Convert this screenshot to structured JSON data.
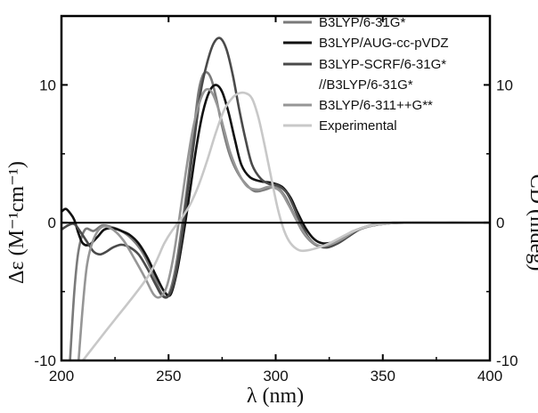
{
  "chart_data": {
    "type": "line",
    "xlabel": "λ (nm)",
    "ylabel_left": "Δε (M⁻¹cm⁻¹)",
    "ylabel_right": "CD (mdeg)",
    "xlim": [
      200,
      400
    ],
    "ylim": [
      -10,
      15
    ],
    "x_ticks": [
      200,
      250,
      300,
      350,
      400
    ],
    "y_ticks_left": [
      -10,
      0,
      10
    ],
    "y_ticks_right": [
      -10,
      0,
      10
    ],
    "zero_line": true,
    "grid": false,
    "legend_position": "top-right",
    "series": [
      {
        "name": "B3LYP/6-31G*",
        "color": "#7a7a7a",
        "points": [
          [
            204,
            -10
          ],
          [
            206,
            -5
          ],
          [
            208,
            -2
          ],
          [
            211,
            -0.5
          ],
          [
            215,
            -0.6
          ],
          [
            219,
            -0.2
          ],
          [
            223,
            -0.3
          ],
          [
            228,
            -0.6
          ],
          [
            233,
            -1.2
          ],
          [
            238,
            -2.2
          ],
          [
            243,
            -3.8
          ],
          [
            247,
            -5.2
          ],
          [
            250,
            -5.2
          ],
          [
            253,
            -3.5
          ],
          [
            256,
            -0.5
          ],
          [
            259,
            3
          ],
          [
            262,
            7
          ],
          [
            264,
            9.5
          ],
          [
            266,
            10.7
          ],
          [
            268,
            10.9
          ],
          [
            270,
            10.4
          ],
          [
            272,
            9.2
          ],
          [
            275,
            7
          ],
          [
            278,
            5.2
          ],
          [
            281,
            4
          ],
          [
            285,
            3
          ],
          [
            290,
            2.3
          ],
          [
            295,
            2.4
          ],
          [
            300,
            2.6
          ],
          [
            304,
            2
          ],
          [
            308,
            0.8
          ],
          [
            312,
            -0.5
          ],
          [
            316,
            -1.3
          ],
          [
            320,
            -1.7
          ],
          [
            325,
            -1.6
          ],
          [
            330,
            -1.2
          ],
          [
            335,
            -0.7
          ],
          [
            340,
            -0.4
          ],
          [
            345,
            -0.2
          ],
          [
            350,
            -0.1
          ],
          [
            360,
            0
          ],
          [
            400,
            0
          ]
        ]
      },
      {
        "name": "B3LYP/AUG-cc-pVDZ",
        "color": "#111111",
        "points": [
          [
            200,
            0.8
          ],
          [
            202,
            1
          ],
          [
            204,
            0.7
          ],
          [
            206,
            0.2
          ],
          [
            208,
            -0.8
          ],
          [
            210,
            -1.5
          ],
          [
            213,
            -1.6
          ],
          [
            217,
            -1
          ],
          [
            220,
            -0.5
          ],
          [
            224,
            -0.4
          ],
          [
            228,
            -0.6
          ],
          [
            232,
            -0.9
          ],
          [
            236,
            -1.5
          ],
          [
            240,
            -2.5
          ],
          [
            244,
            -3.8
          ],
          [
            248,
            -5
          ],
          [
            251,
            -5.2
          ],
          [
            254,
            -3.5
          ],
          [
            257,
            -0.8
          ],
          [
            260,
            2.3
          ],
          [
            263,
            5.5
          ],
          [
            266,
            8
          ],
          [
            269,
            9.5
          ],
          [
            272,
            10
          ],
          [
            275,
            9.5
          ],
          [
            278,
            8
          ],
          [
            281,
            6
          ],
          [
            284,
            4.2
          ],
          [
            288,
            3.3
          ],
          [
            293,
            3
          ],
          [
            298,
            2.9
          ],
          [
            303,
            2.6
          ],
          [
            307,
            1.8
          ],
          [
            310,
            0.8
          ],
          [
            314,
            -0.4
          ],
          [
            318,
            -1.2
          ],
          [
            322,
            -1.5
          ],
          [
            327,
            -1.4
          ],
          [
            332,
            -1
          ],
          [
            337,
            -0.6
          ],
          [
            342,
            -0.3
          ],
          [
            347,
            -0.15
          ],
          [
            355,
            0
          ],
          [
            400,
            0
          ]
        ]
      },
      {
        "name": "B3LYP-SCRF/6-31G* //B3LYP/6-31G*",
        "color": "#4a4a4a",
        "points": [
          [
            200,
            -0.5
          ],
          [
            203,
            -0.2
          ],
          [
            206,
            -0.1
          ],
          [
            209,
            -0.7
          ],
          [
            212,
            -1.4
          ],
          [
            215,
            -2.1
          ],
          [
            218,
            -2.3
          ],
          [
            221,
            -2.1
          ],
          [
            224,
            -1.8
          ],
          [
            228,
            -1.6
          ],
          [
            232,
            -1.8
          ],
          [
            236,
            -2.3
          ],
          [
            240,
            -3.3
          ],
          [
            244,
            -4.5
          ],
          [
            247,
            -5.3
          ],
          [
            250,
            -5.3
          ],
          [
            253,
            -4
          ],
          [
            256,
            -1.2
          ],
          [
            259,
            2.4
          ],
          [
            262,
            6
          ],
          [
            265,
            9.5
          ],
          [
            268,
            11.6
          ],
          [
            271,
            13
          ],
          [
            274,
            13.4
          ],
          [
            277,
            12.6
          ],
          [
            280,
            10.7
          ],
          [
            283,
            8.2
          ],
          [
            286,
            6
          ],
          [
            289,
            4.2
          ],
          [
            293,
            3.2
          ],
          [
            297,
            2.8
          ],
          [
            301,
            2.7
          ],
          [
            305,
            2.2
          ],
          [
            308,
            1.3
          ],
          [
            311,
            0.2
          ],
          [
            315,
            -1
          ],
          [
            319,
            -1.6
          ],
          [
            324,
            -1.8
          ],
          [
            329,
            -1.5
          ],
          [
            334,
            -1
          ],
          [
            339,
            -0.5
          ],
          [
            344,
            -0.25
          ],
          [
            350,
            -0.1
          ],
          [
            360,
            0
          ],
          [
            400,
            0
          ]
        ]
      },
      {
        "name": "B3LYP/6-311++G**",
        "color": "#969696",
        "points": [
          [
            208,
            -10
          ],
          [
            210,
            -6
          ],
          [
            212,
            -3
          ],
          [
            215,
            -1.2
          ],
          [
            219,
            -0.3
          ],
          [
            224,
            -0.5
          ],
          [
            229,
            -1.3
          ],
          [
            234,
            -2.6
          ],
          [
            239,
            -4
          ],
          [
            243,
            -5.2
          ],
          [
            246,
            -5.4
          ],
          [
            249,
            -4.7
          ],
          [
            252,
            -2.7
          ],
          [
            255,
            0.3
          ],
          [
            258,
            3.6
          ],
          [
            261,
            6.5
          ],
          [
            264,
            8.5
          ],
          [
            267,
            9.6
          ],
          [
            270,
            9.5
          ],
          [
            273,
            8.4
          ],
          [
            276,
            6.7
          ],
          [
            279,
            5
          ],
          [
            283,
            3.5
          ],
          [
            287,
            2.6
          ],
          [
            292,
            2.4
          ],
          [
            297,
            2.6
          ],
          [
            302,
            2.3
          ],
          [
            306,
            1.3
          ],
          [
            310,
            0.1
          ],
          [
            314,
            -0.9
          ],
          [
            318,
            -1.5
          ],
          [
            322,
            -1.7
          ],
          [
            327,
            -1.5
          ],
          [
            332,
            -1.1
          ],
          [
            337,
            -0.6
          ],
          [
            342,
            -0.3
          ],
          [
            347,
            -0.1
          ],
          [
            355,
            0
          ],
          [
            400,
            0
          ]
        ]
      },
      {
        "name": "Experimental",
        "color": "#c8c8c8",
        "points": [
          [
            200,
            -12
          ],
          [
            220,
            -8
          ],
          [
            240,
            -4
          ],
          [
            248,
            -1.5
          ],
          [
            252,
            -0.5
          ],
          [
            256,
            0.3
          ],
          [
            260,
            1.3
          ],
          [
            264,
            2.7
          ],
          [
            268,
            4.5
          ],
          [
            272,
            6.5
          ],
          [
            276,
            8.2
          ],
          [
            280,
            9.1
          ],
          [
            283,
            9.4
          ],
          [
            286,
            9.4
          ],
          [
            289,
            9
          ],
          [
            292,
            7.6
          ],
          [
            295,
            5.5
          ],
          [
            298,
            3.2
          ],
          [
            301,
            1
          ],
          [
            304,
            -0.6
          ],
          [
            307,
            -1.5
          ],
          [
            311,
            -2
          ],
          [
            315,
            -2
          ],
          [
            320,
            -1.8
          ],
          [
            325,
            -1.5
          ],
          [
            330,
            -1.1
          ],
          [
            335,
            -0.7
          ],
          [
            340,
            -0.4
          ],
          [
            345,
            -0.2
          ],
          [
            350,
            -0.1
          ],
          [
            360,
            0
          ],
          [
            400,
            0
          ]
        ]
      }
    ]
  }
}
